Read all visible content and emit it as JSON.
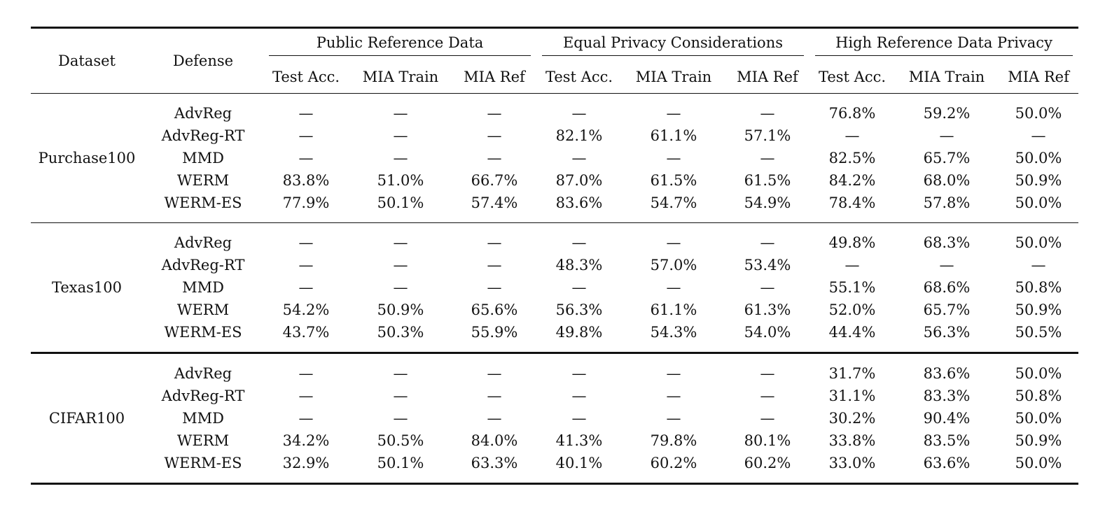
{
  "header": {
    "dataset": "Dataset",
    "defense": "Defense",
    "groups": [
      "Public Reference Data",
      "Equal Privacy Considerations",
      "High Reference Data Privacy"
    ],
    "subcols": [
      "Test Acc.",
      "MIA Train",
      "MIA Ref"
    ]
  },
  "blocks": [
    {
      "dataset": "Purchase100",
      "rows": [
        {
          "defense": "AdvReg",
          "cells": [
            "—",
            "—",
            "—",
            "—",
            "—",
            "—",
            "76.8%",
            "59.2%",
            "50.0%"
          ]
        },
        {
          "defense": "AdvReg-RT",
          "cells": [
            "—",
            "—",
            "—",
            "82.1%",
            "61.1%",
            "57.1%",
            "—",
            "—",
            "—"
          ]
        },
        {
          "defense": "MMD",
          "cells": [
            "—",
            "—",
            "—",
            "—",
            "—",
            "—",
            "82.5%",
            "65.7%",
            "50.0%"
          ]
        },
        {
          "defense": "WERM",
          "cells": [
            "83.8%",
            "51.0%",
            "66.7%",
            "87.0%",
            "61.5%",
            "61.5%",
            "84.2%",
            "68.0%",
            "50.9%"
          ]
        },
        {
          "defense": "WERM-ES",
          "cells": [
            "77.9%",
            "50.1%",
            "57.4%",
            "83.6%",
            "54.7%",
            "54.9%",
            "78.4%",
            "57.8%",
            "50.0%"
          ]
        }
      ]
    },
    {
      "dataset": "Texas100",
      "rows": [
        {
          "defense": "AdvReg",
          "cells": [
            "—",
            "—",
            "—",
            "—",
            "—",
            "—",
            "49.8%",
            "68.3%",
            "50.0%"
          ]
        },
        {
          "defense": "AdvReg-RT",
          "cells": [
            "—",
            "—",
            "—",
            "48.3%",
            "57.0%",
            "53.4%",
            "—",
            "—",
            "—"
          ]
        },
        {
          "defense": "MMD",
          "cells": [
            "—",
            "—",
            "—",
            "—",
            "—",
            "—",
            "55.1%",
            "68.6%",
            "50.8%"
          ]
        },
        {
          "defense": "WERM",
          "cells": [
            "54.2%",
            "50.9%",
            "65.6%",
            "56.3%",
            "61.1%",
            "61.3%",
            "52.0%",
            "65.7%",
            "50.9%"
          ]
        },
        {
          "defense": "WERM-ES",
          "cells": [
            "43.7%",
            "50.3%",
            "55.9%",
            "49.8%",
            "54.3%",
            "54.0%",
            "44.4%",
            "56.3%",
            "50.5%"
          ]
        }
      ]
    },
    {
      "dataset": "CIFAR100",
      "rows": [
        {
          "defense": "AdvReg",
          "cells": [
            "—",
            "—",
            "—",
            "—",
            "—",
            "—",
            "31.7%",
            "83.6%",
            "50.0%"
          ]
        },
        {
          "defense": "AdvReg-RT",
          "cells": [
            "—",
            "—",
            "—",
            "—",
            "—",
            "—",
            "31.1%",
            "83.3%",
            "50.8%"
          ]
        },
        {
          "defense": "MMD",
          "cells": [
            "—",
            "—",
            "—",
            "—",
            "—",
            "—",
            "30.2%",
            "90.4%",
            "50.0%"
          ]
        },
        {
          "defense": "WERM",
          "cells": [
            "34.2%",
            "50.5%",
            "84.0%",
            "41.3%",
            "79.8%",
            "80.1%",
            "33.8%",
            "83.5%",
            "50.9%"
          ]
        },
        {
          "defense": "WERM-ES",
          "cells": [
            "32.9%",
            "50.1%",
            "63.3%",
            "40.1%",
            "60.2%",
            "60.2%",
            "33.0%",
            "63.6%",
            "50.0%"
          ]
        }
      ]
    }
  ]
}
